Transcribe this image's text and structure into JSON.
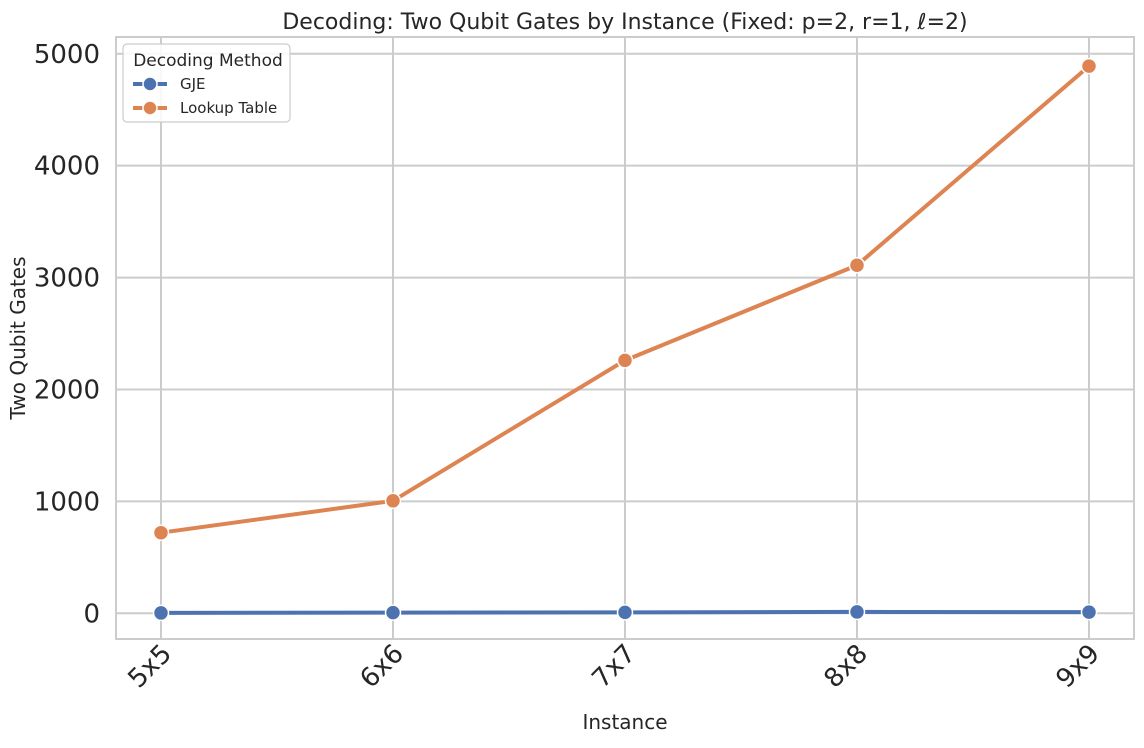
{
  "chart_data": {
    "type": "line",
    "title": "Decoding: Two Qubit Gates by Instance (Fixed: p=2, r=1, ℓ=2)",
    "xlabel": "Instance",
    "ylabel": "Two Qubit Gates",
    "categories": [
      "5x5",
      "6x6",
      "7x7",
      "8x8",
      "9x9"
    ],
    "ylim": [
      -230,
      5150
    ],
    "yticks": [
      0,
      1000,
      2000,
      3000,
      4000,
      5000
    ],
    "grid": true,
    "legend": {
      "title": "Decoding Method",
      "position": "top-left"
    },
    "series": [
      {
        "name": "GJE",
        "color": "#4c72b0",
        "values": [
          3,
          6,
          8,
          12,
          10
        ]
      },
      {
        "name": "Lookup Table",
        "color": "#dd8452",
        "values": [
          720,
          1005,
          2260,
          3110,
          4890
        ]
      }
    ]
  }
}
